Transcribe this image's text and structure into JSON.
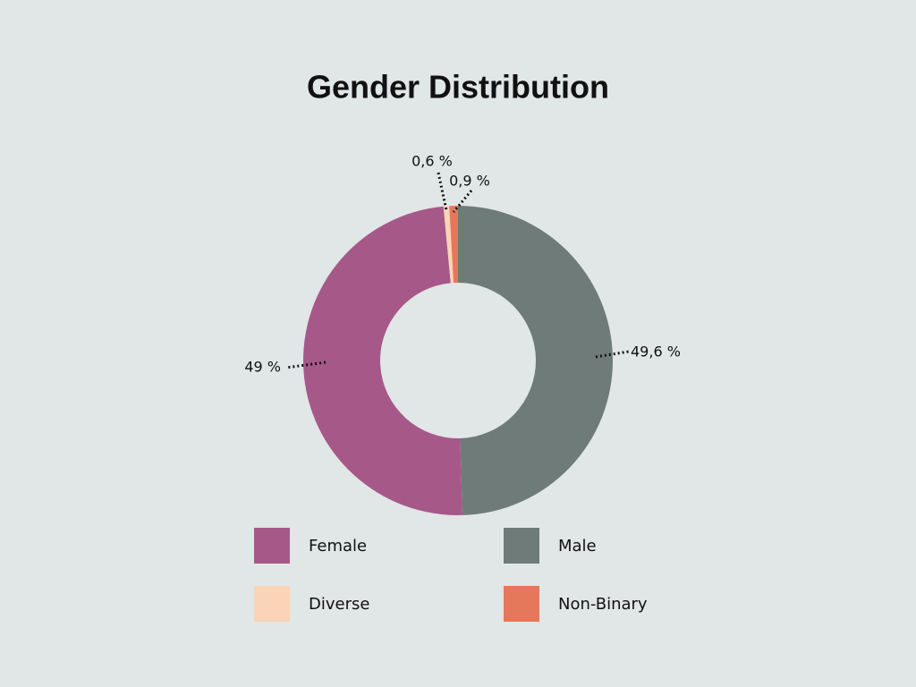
{
  "chart_data": {
    "type": "donut",
    "title": "Gender Distribution",
    "categories": [
      "Male",
      "Female",
      "Diverse",
      "Non-Binary"
    ],
    "values": [
      49.6,
      49,
      0.6,
      0.9
    ],
    "value_labels": [
      "49,6 %",
      "49 %",
      "0,6 %",
      "0,9 %"
    ],
    "colors": [
      "#6e7b79",
      "#a65988",
      "#fbd3b6",
      "#e5775a"
    ]
  }
}
